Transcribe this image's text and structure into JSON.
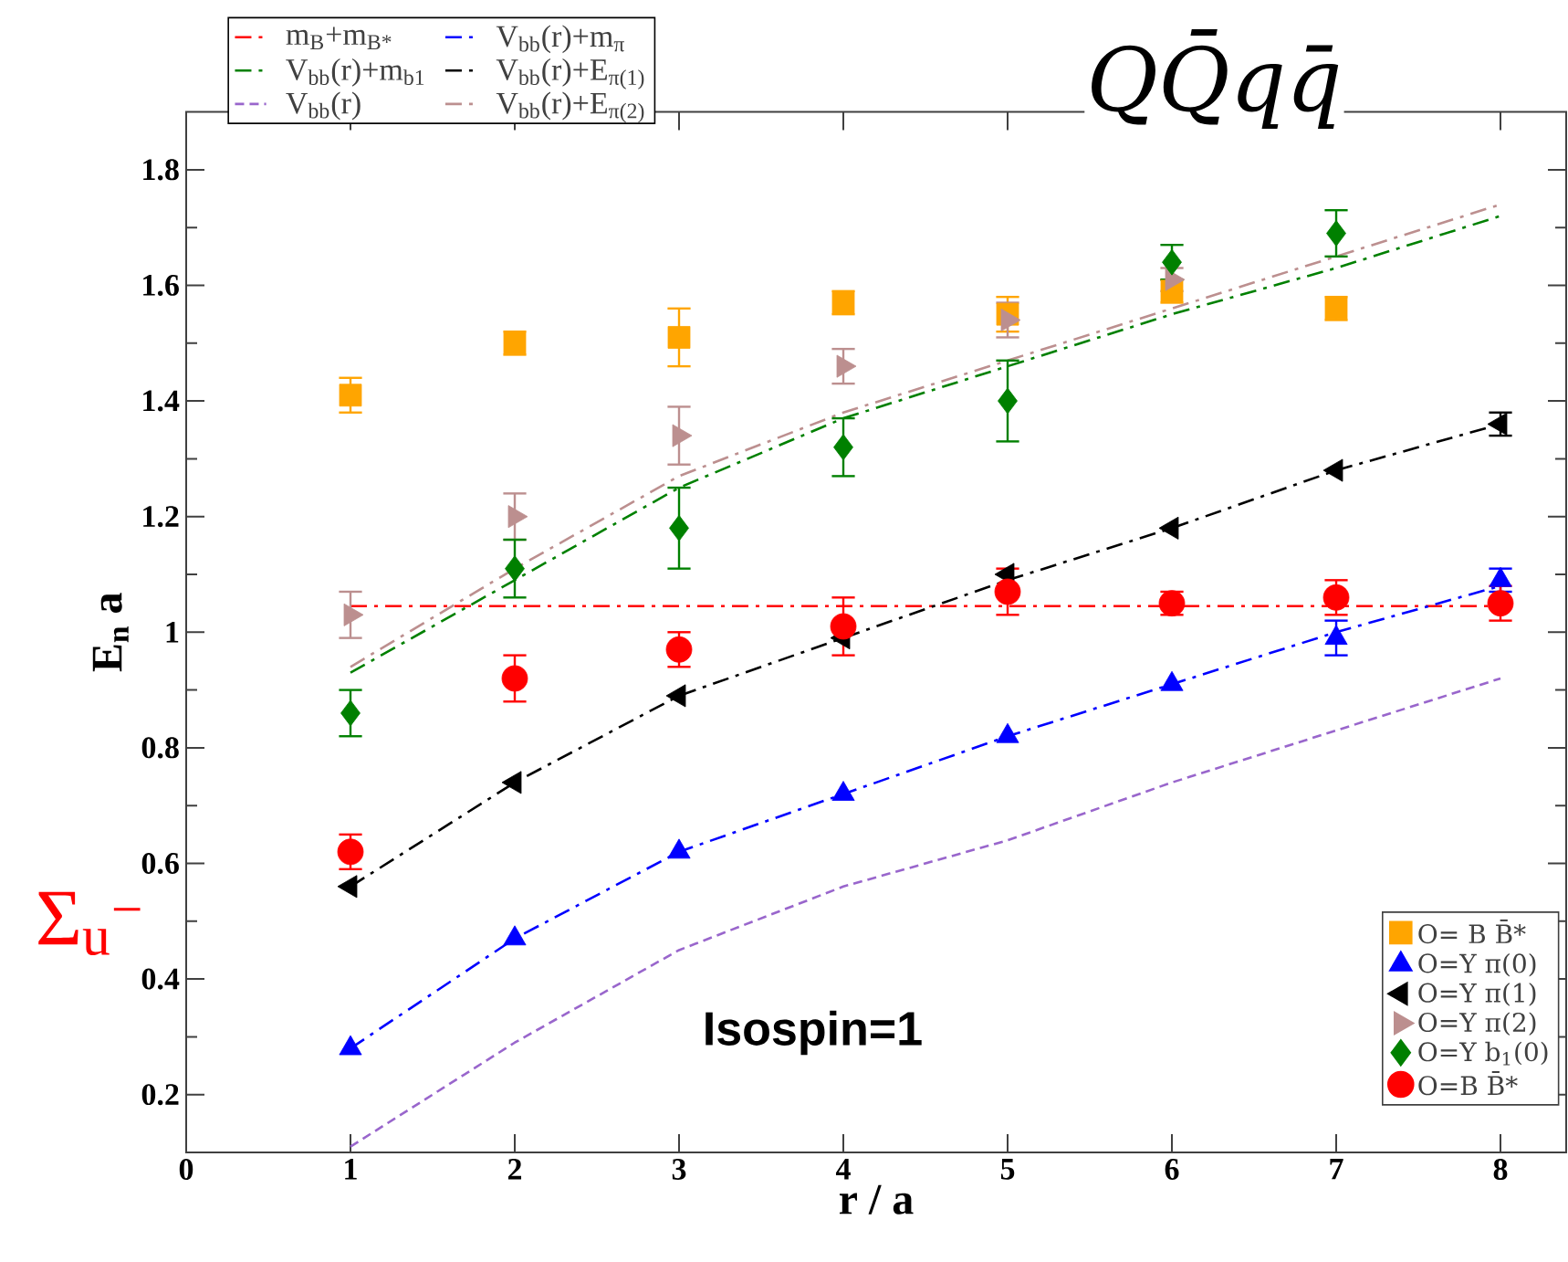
{
  "chart_data": {
    "type": "scatter",
    "title": "QQ̄qq̄",
    "xlabel": "r / a",
    "ylabel": "E$_{n}$ a",
    "x": [
      1,
      2,
      3,
      4,
      5,
      6,
      7,
      8
    ],
    "xlim": [
      0,
      8.4
    ],
    "xticks": [
      0,
      1,
      2,
      3,
      4,
      5,
      6,
      7,
      8
    ],
    "ylim": [
      0.1,
      1.9
    ],
    "yticks": [
      0.2,
      0.4,
      0.6,
      0.8,
      1,
      1.2,
      1.4,
      1.6,
      1.8
    ],
    "legend": "top left",
    "annotations": [
      "Isospin=1",
      "Σ$_{u}$$^{−}$"
    ],
    "series": [
      {
        "type": "line",
        "name": "m$_{B}$+m$_{B*}$",
        "color": "#ff0000",
        "line_style": "dashdot",
        "values": [
          1.045,
          1.045,
          1.045,
          1.045,
          1.045,
          1.045,
          1.045,
          1.045
        ]
      },
      {
        "type": "line",
        "name": "V$_{bb}$(r)+m$_{b1}$",
        "color": "#008000",
        "line_style": "dashdot",
        "values": [
          0.93,
          1.09,
          1.25,
          1.37,
          1.46,
          1.55,
          1.63,
          1.72
        ]
      },
      {
        "type": "line",
        "name": "V$_{bb}$(r)",
        "color": "#9966cc",
        "line_style": "dashed",
        "values": [
          0.11,
          0.29,
          0.45,
          0.56,
          0.64,
          0.74,
          0.83,
          0.92
        ]
      },
      {
        "type": "line",
        "name": "V$_{bb}$(r)+m$_{π}$",
        "color": "#0000ff",
        "line_style": "dashdot",
        "values": [
          0.28,
          0.47,
          0.62,
          0.72,
          0.82,
          0.91,
          1.0,
          1.08
        ]
      },
      {
        "type": "line",
        "name": "V$_{bb}$(r)+E$_{π(1)}$",
        "color": "#000000",
        "line_style": "dashdot",
        "values": [
          0.56,
          0.74,
          0.89,
          0.99,
          1.09,
          1.18,
          1.28,
          1.36
        ]
      },
      {
        "type": "line",
        "name": "V$_{bb}$(r)+E$_{π(2)}$",
        "color": "#bc8f8f",
        "line_style": "dashdot",
        "values": [
          0.94,
          1.11,
          1.27,
          1.38,
          1.47,
          1.56,
          1.65,
          1.74
        ]
      },
      {
        "name": "O= B B̄*",
        "color": "#ffa500",
        "marker": "square",
        "values": [
          1.41,
          1.5,
          1.51,
          1.57,
          1.55,
          1.59,
          1.56,
          null
        ],
        "errors": [
          0.03,
          0.02,
          0.05,
          0.02,
          0.03,
          0.02,
          0.02,
          null
        ]
      },
      {
        "name": "O=Y π(0)",
        "color": "#0000ff",
        "marker": "triangle",
        "values": [
          0.28,
          0.47,
          0.62,
          0.72,
          0.82,
          0.91,
          0.99,
          1.09
        ],
        "errors": [
          null,
          null,
          null,
          null,
          null,
          null,
          0.03,
          0.02
        ]
      },
      {
        "name": "O=Y π(1)",
        "color": "#000000",
        "marker": "triangle-left",
        "values": [
          0.56,
          0.74,
          0.89,
          0.99,
          1.1,
          1.18,
          1.28,
          1.36
        ],
        "errors": [
          null,
          null,
          null,
          null,
          null,
          null,
          null,
          0.02
        ]
      },
      {
        "name": "O=Y π(2)",
        "color": "#bc8f8f",
        "marker": "triangle-right",
        "values": [
          1.03,
          1.2,
          1.34,
          1.46,
          1.54,
          1.61,
          null,
          null
        ],
        "errors": [
          0.04,
          0.04,
          0.05,
          0.03,
          0.03,
          0.02,
          null,
          null
        ]
      },
      {
        "name": "O=Y b$_{1}$(0)",
        "color": "#008000",
        "marker": "diamond",
        "values": [
          0.86,
          1.11,
          1.18,
          1.32,
          1.4,
          1.64,
          1.69,
          null
        ],
        "errors": [
          0.04,
          0.05,
          0.07,
          0.05,
          0.07,
          0.03,
          0.04,
          null
        ]
      },
      {
        "name": "O=B B̄*",
        "color": "#ff0000",
        "marker": "circle",
        "values": [
          0.62,
          0.92,
          0.97,
          1.01,
          1.07,
          1.05,
          1.06,
          1.05
        ],
        "errors": [
          0.03,
          0.04,
          0.03,
          0.05,
          0.04,
          0.02,
          0.03,
          0.03
        ]
      }
    ]
  }
}
